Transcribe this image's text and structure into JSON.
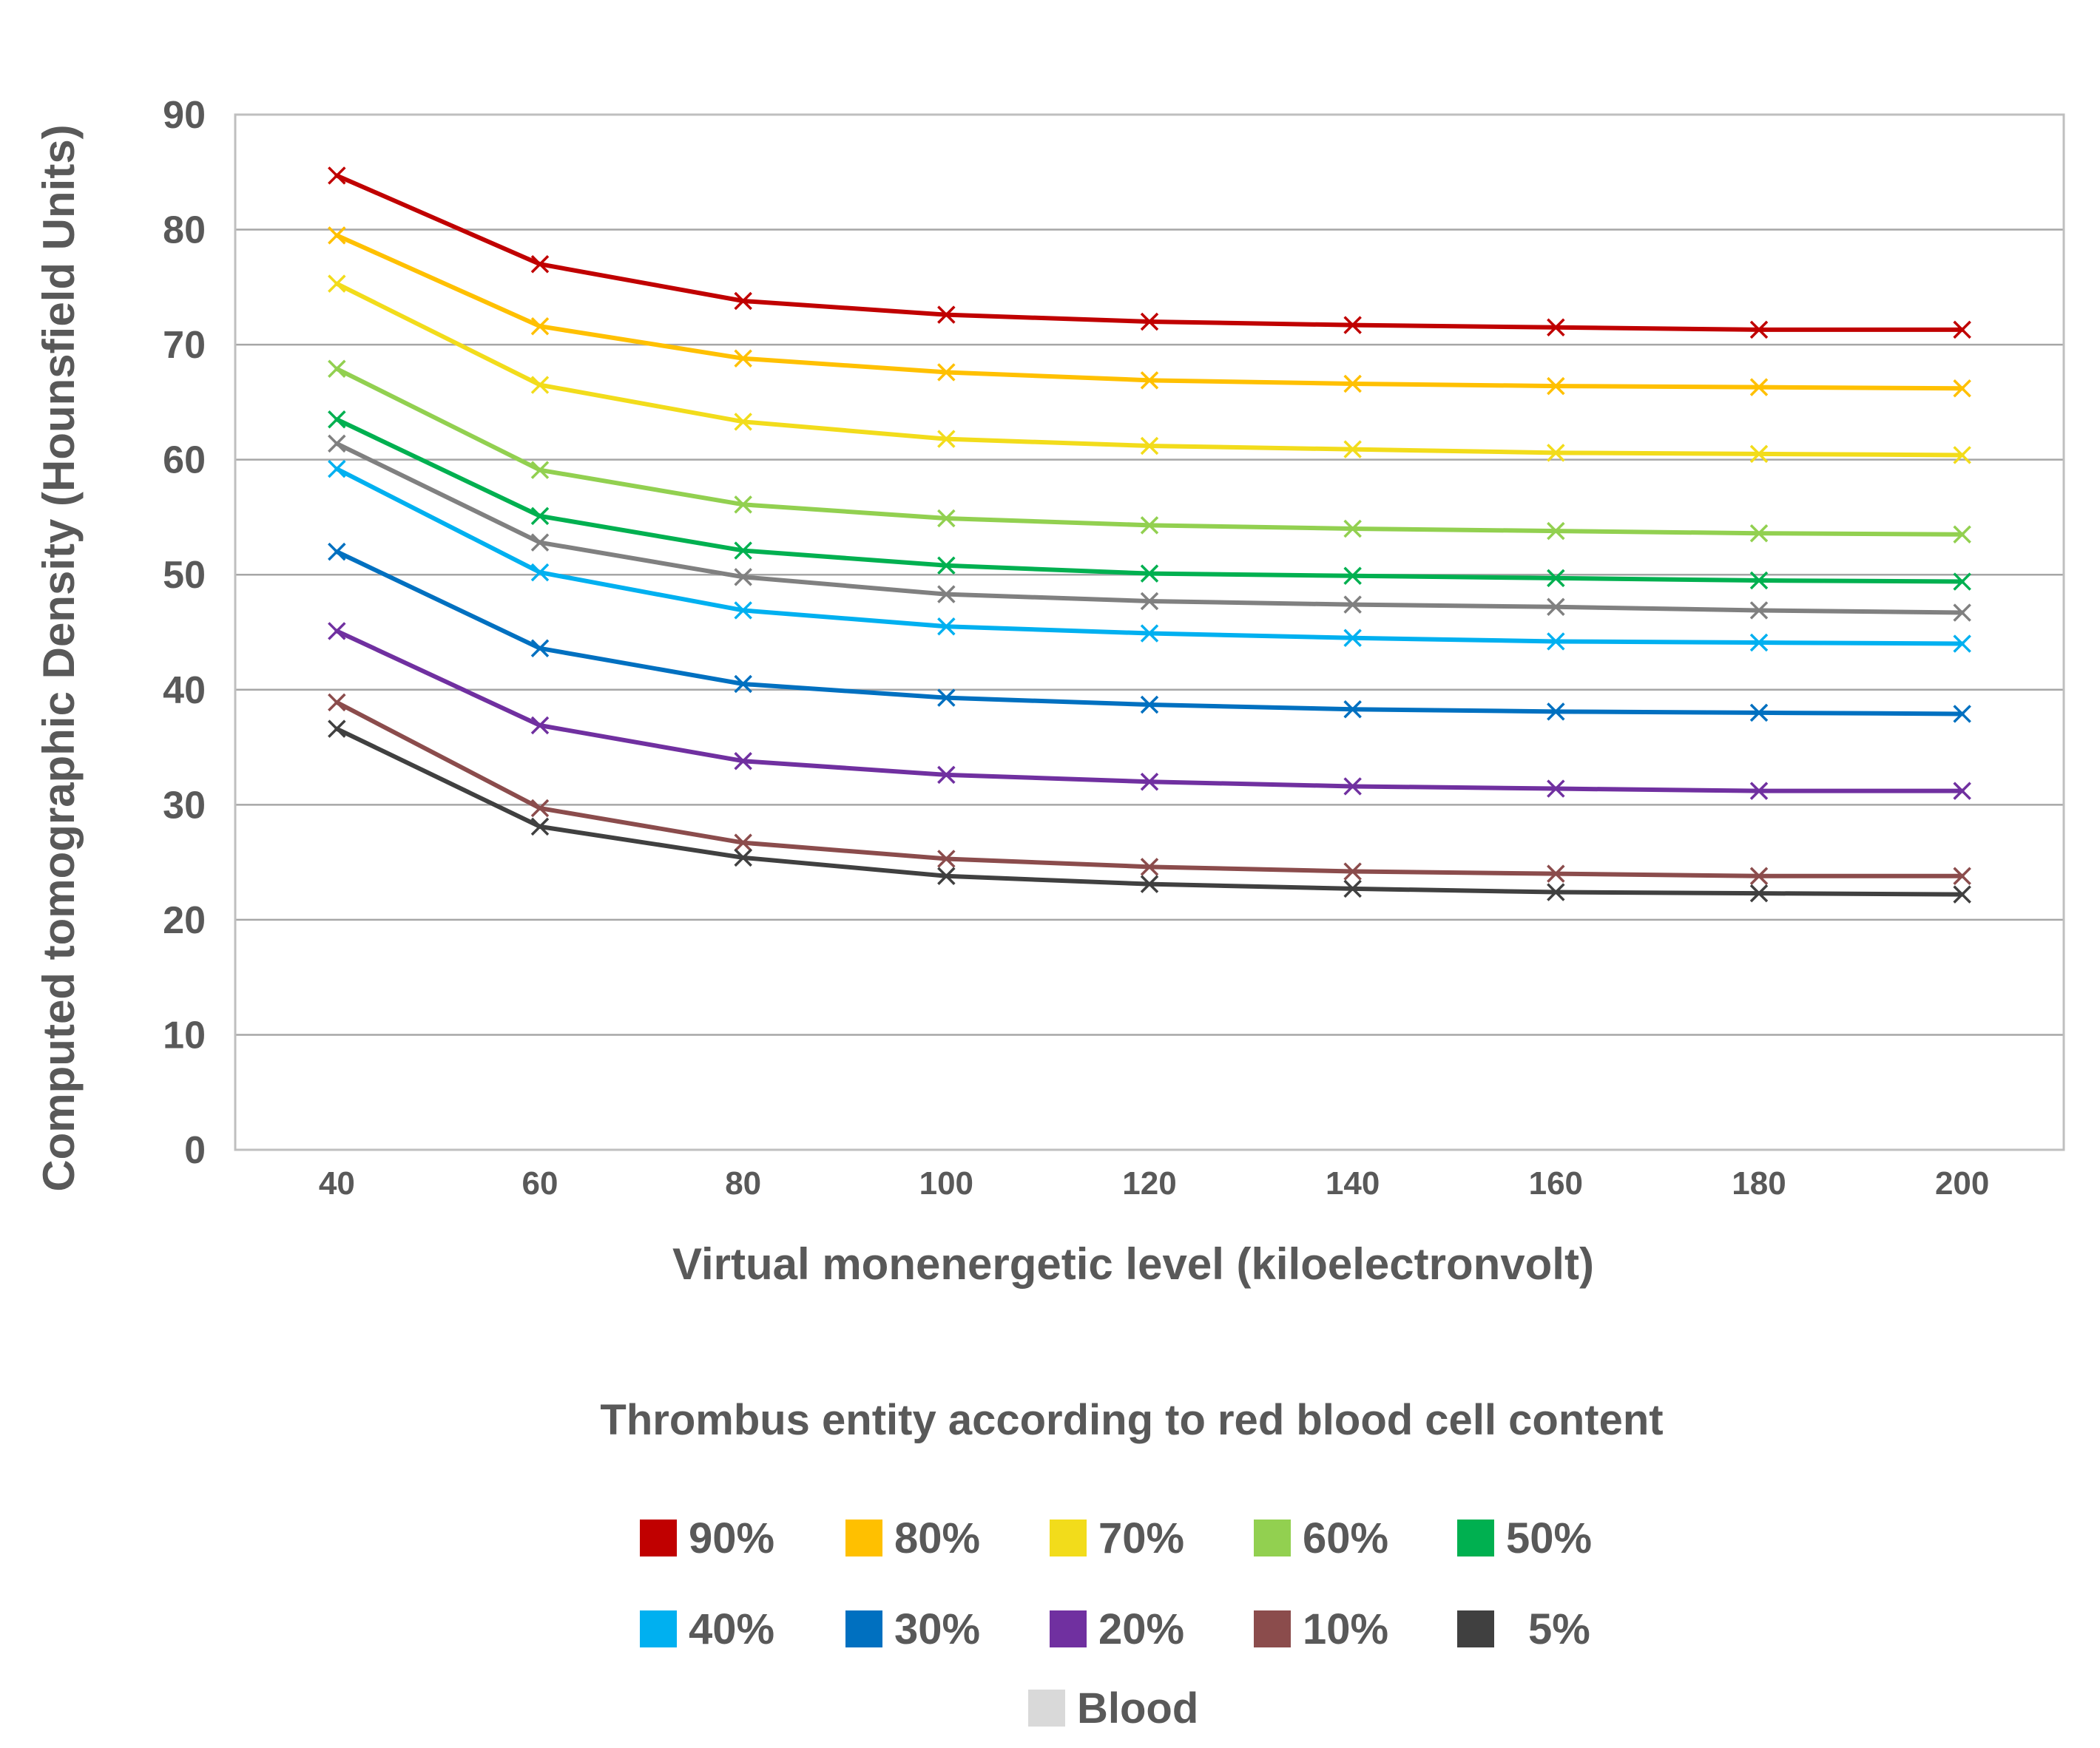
{
  "chart_data": {
    "type": "line",
    "title": "",
    "xlabel": "Virtual monenergetic level (kiloelectronvolt)",
    "ylabel": "Computed tomographic Density (Hounsfield Units)",
    "ylim": [
      0,
      90
    ],
    "yticks": [
      0,
      10,
      20,
      30,
      40,
      50,
      60,
      70,
      80,
      90
    ],
    "x": [
      40,
      60,
      80,
      100,
      120,
      140,
      160,
      180,
      200
    ],
    "grid": true,
    "legend_title": "Thrombus entity according to red blood cell content",
    "legend_position": "bottom",
    "marker": "x",
    "series": [
      {
        "name": "90%",
        "color": "#c00000",
        "values": [
          84.7,
          77.0,
          73.8,
          72.6,
          72.0,
          71.7,
          71.5,
          71.3,
          71.3
        ]
      },
      {
        "name": "80%",
        "color": "#ffc000",
        "values": [
          79.5,
          71.6,
          68.8,
          67.6,
          66.9,
          66.6,
          66.4,
          66.3,
          66.2
        ]
      },
      {
        "name": "70%",
        "color": "#f2dc1b",
        "values": [
          75.3,
          66.5,
          63.3,
          61.8,
          61.2,
          60.9,
          60.6,
          60.5,
          60.4
        ]
      },
      {
        "name": "60%",
        "color": "#92d050",
        "values": [
          67.9,
          59.1,
          56.1,
          54.9,
          54.3,
          54.0,
          53.8,
          53.6,
          53.5
        ]
      },
      {
        "name": "50%",
        "color": "#00b050",
        "values": [
          63.5,
          55.1,
          52.1,
          50.8,
          50.1,
          49.9,
          49.7,
          49.5,
          49.4
        ]
      },
      {
        "name": "40%",
        "color": "#00b0f0",
        "values": [
          59.2,
          50.2,
          46.9,
          45.5,
          44.9,
          44.5,
          44.2,
          44.1,
          44.0
        ]
      },
      {
        "name": "30%",
        "color": "#0070c0",
        "values": [
          52.0,
          43.6,
          40.5,
          39.3,
          38.7,
          38.3,
          38.1,
          38.0,
          37.9
        ]
      },
      {
        "name": "20%",
        "color": "#7030a0",
        "values": [
          45.1,
          36.9,
          33.8,
          32.6,
          32.0,
          31.6,
          31.4,
          31.2,
          31.2
        ]
      },
      {
        "name": "10%",
        "color": "#8b4c4c",
        "values": [
          38.9,
          29.7,
          26.7,
          25.3,
          24.6,
          24.2,
          24.0,
          23.8,
          23.8
        ]
      },
      {
        "name": "5%",
        "color": "#404040",
        "values": [
          36.6,
          28.1,
          25.4,
          23.8,
          23.1,
          22.7,
          22.4,
          22.3,
          22.2
        ]
      },
      {
        "name": "Blood",
        "color": "#808080",
        "legend_color": "#d9d9d9",
        "values": [
          61.4,
          52.8,
          49.8,
          48.3,
          47.7,
          47.4,
          47.2,
          46.9,
          46.7
        ]
      }
    ]
  }
}
